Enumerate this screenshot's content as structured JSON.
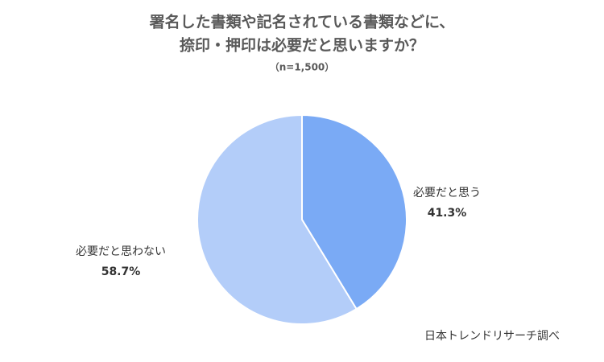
{
  "chart_data": {
    "type": "pie",
    "title": [
      "署名した書類や記名されている書類などに、",
      "捺印・押印は必要だと思いますか？"
    ],
    "subtitle": "（n=1,500）",
    "categories": [
      "必要だと思う",
      "必要だと思わない"
    ],
    "values": [
      41.3,
      58.7
    ],
    "value_labels": [
      "41.3%",
      "58.7%"
    ],
    "colors": [
      "#7aaaf5",
      "#b3cdf9"
    ],
    "source": "日本トレンドリサーチ調べ"
  }
}
